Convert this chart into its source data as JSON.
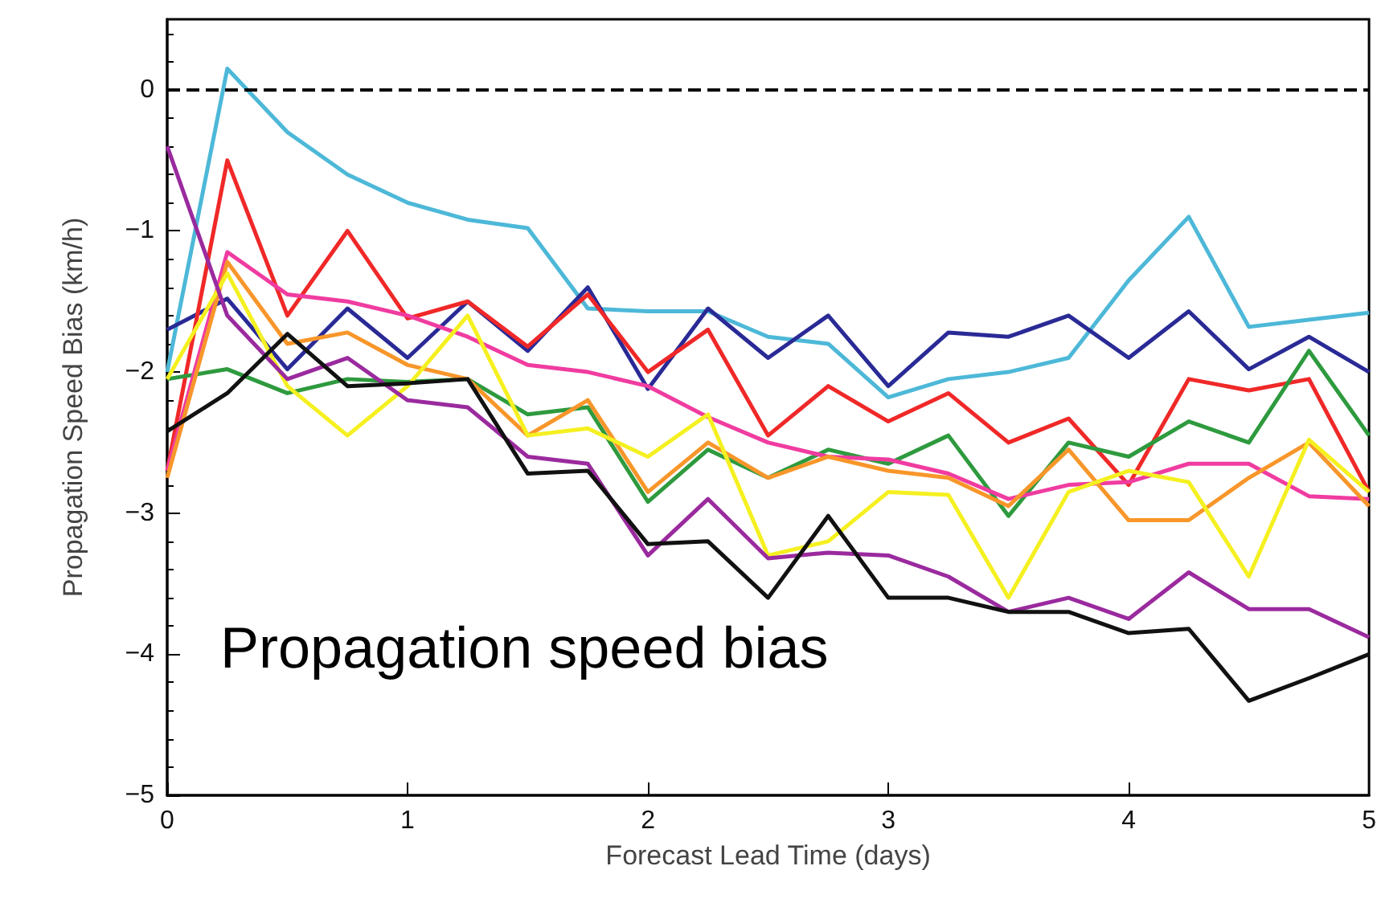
{
  "chart_data": {
    "type": "line",
    "xlabel": "Forecast Lead Time (days)",
    "ylabel": "Propagation Speed Bias (km/h)",
    "annotations": [
      "Propagation speed bias"
    ],
    "x": [
      0,
      0.25,
      0.5,
      0.75,
      1,
      1.25,
      1.5,
      1.75,
      2,
      2.25,
      2.5,
      2.75,
      3,
      3.25,
      3.5,
      3.75,
      4,
      4.25,
      4.5,
      4.75,
      5
    ],
    "xlim": [
      0,
      5
    ],
    "xticks": [
      0,
      1,
      2,
      3,
      4,
      5
    ],
    "ylim": [
      -5,
      0.5
    ],
    "yticks": [
      {
        "value": -5,
        "label": "−5"
      },
      {
        "value": -4,
        "label": "−4"
      },
      {
        "value": -3,
        "label": "−3"
      },
      {
        "value": -2,
        "label": "−2"
      },
      {
        "value": -1,
        "label": "−1"
      },
      0
    ],
    "grid": false,
    "marker": "none",
    "line_style": "solid",
    "ref_lines": [
      {
        "axis": "y",
        "value": 0,
        "label": null,
        "color": "#000000",
        "line_style": "dashed"
      }
    ],
    "series": [
      {
        "color": "#4db8d8",
        "values": [
          -2.0,
          0.15,
          -0.3,
          -0.6,
          -0.8,
          -0.92,
          -0.98,
          -1.55,
          -1.57,
          -1.57,
          -1.75,
          -1.8,
          -2.18,
          -2.05,
          -2.0,
          -1.9,
          -1.35,
          -0.9,
          -1.68,
          -1.63,
          -1.58
        ]
      },
      {
        "color": "#2a2a96",
        "values": [
          -1.7,
          -1.48,
          -1.98,
          -1.55,
          -1.9,
          -1.5,
          -1.85,
          -1.4,
          -2.12,
          -1.55,
          -1.9,
          -1.6,
          -2.1,
          -1.72,
          -1.75,
          -1.6,
          -1.9,
          -1.57,
          -1.98,
          -1.75,
          -2.0
        ]
      },
      {
        "color": "#f02828",
        "values": [
          -2.7,
          -0.5,
          -1.6,
          -1.0,
          -1.62,
          -1.5,
          -1.82,
          -1.45,
          -2.0,
          -1.7,
          -2.45,
          -2.1,
          -2.35,
          -2.15,
          -2.5,
          -2.33,
          -2.8,
          -2.05,
          -2.13,
          -2.05,
          -2.85
        ]
      },
      {
        "color": "#2e9a3e",
        "values": [
          -2.05,
          -1.98,
          -2.15,
          -2.05,
          -2.07,
          -2.05,
          -2.3,
          -2.25,
          -2.92,
          -2.55,
          -2.75,
          -2.55,
          -2.65,
          -2.45,
          -3.02,
          -2.5,
          -2.6,
          -2.35,
          -2.5,
          -1.85,
          -2.45
        ]
      },
      {
        "color": "#f03ca0",
        "values": [
          -2.7,
          -1.15,
          -1.45,
          -1.5,
          -1.6,
          -1.75,
          -1.95,
          -2.0,
          -2.1,
          -2.32,
          -2.5,
          -2.6,
          -2.62,
          -2.72,
          -2.9,
          -2.8,
          -2.78,
          -2.65,
          -2.65,
          -2.88,
          -2.9
        ]
      },
      {
        "color": "#f8962a",
        "values": [
          -2.75,
          -1.22,
          -1.8,
          -1.72,
          -1.95,
          -2.05,
          -2.45,
          -2.2,
          -2.85,
          -2.5,
          -2.75,
          -2.6,
          -2.7,
          -2.75,
          -2.95,
          -2.55,
          -3.05,
          -3.05,
          -2.75,
          -2.5,
          -2.95
        ]
      },
      {
        "color": "#f5f020",
        "values": [
          -2.05,
          -1.3,
          -2.1,
          -2.45,
          -2.1,
          -1.6,
          -2.45,
          -2.4,
          -2.6,
          -2.3,
          -3.3,
          -3.2,
          -2.85,
          -2.87,
          -3.6,
          -2.85,
          -2.7,
          -2.78,
          -3.45,
          -2.48,
          -2.85
        ]
      },
      {
        "color": "#9a2a9e",
        "values": [
          -0.4,
          -1.6,
          -2.05,
          -1.9,
          -2.2,
          -2.25,
          -2.6,
          -2.65,
          -3.3,
          -2.9,
          -3.32,
          -3.28,
          -3.3,
          -3.45,
          -3.7,
          -3.6,
          -3.75,
          -3.42,
          -3.68,
          -3.68,
          -3.88
        ]
      },
      {
        "color": "#111111",
        "values": [
          -2.42,
          -2.15,
          -1.73,
          -2.1,
          -2.08,
          -2.05,
          -2.72,
          -2.7,
          -3.22,
          -3.2,
          -3.6,
          -3.02,
          -3.6,
          -3.6,
          -3.7,
          -3.7,
          -3.85,
          -3.82,
          -4.33,
          -4.17,
          -4.0
        ]
      }
    ]
  }
}
